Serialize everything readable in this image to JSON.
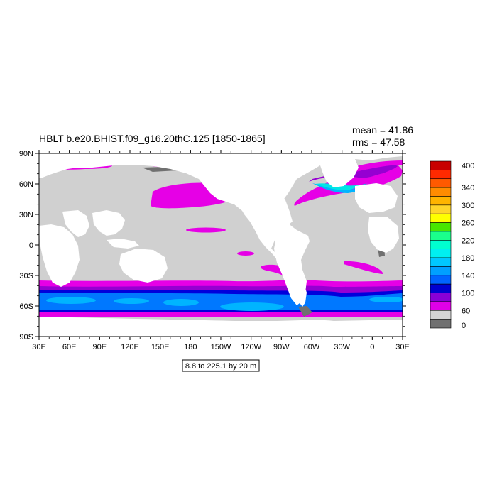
{
  "title": "HBLT b.e20.BHIST.f09_g16.20thC.125 [1850-1865]",
  "stats": {
    "mean_label": "mean = 41.86",
    "rms_label": "rms = 47.58"
  },
  "contour_info": "8.8 to 225.1 by 20 m",
  "axes": {
    "lon_ticks": [
      "30E",
      "60E",
      "90E",
      "120E",
      "150E",
      "180",
      "150W",
      "120W",
      "90W",
      "60W",
      "30W",
      "0",
      "30E"
    ],
    "lat_ticks": [
      "90N",
      "60N",
      "30N",
      "0",
      "30S",
      "60S",
      "90S"
    ]
  },
  "colorbar": {
    "labels": [
      "400",
      "340",
      "300",
      "260",
      "220",
      "180",
      "140",
      "100",
      "60",
      "0"
    ],
    "colors": [
      "#c80000",
      "#ff2a00",
      "#ff5a00",
      "#ff8c00",
      "#ffb400",
      "#ffd52a",
      "#ffff00",
      "#48e600",
      "#1aff8c",
      "#00ffd0",
      "#00f0f0",
      "#00c8ff",
      "#00a0ff",
      "#0064ff",
      "#0000d0",
      "#8a00d6",
      "#e000e8",
      "#d4d4d4",
      "#707070"
    ]
  },
  "palette": {
    "land": "#ffffff",
    "ocean_low": "#d0d0d0",
    "ocean_zero": "#707070",
    "magenta": "#e600e6",
    "purple": "#9600d2",
    "blue": "#0000dc",
    "mid_blue": "#0078ff",
    "light_blue": "#00b4ff",
    "cyan": "#00e6e6"
  }
}
